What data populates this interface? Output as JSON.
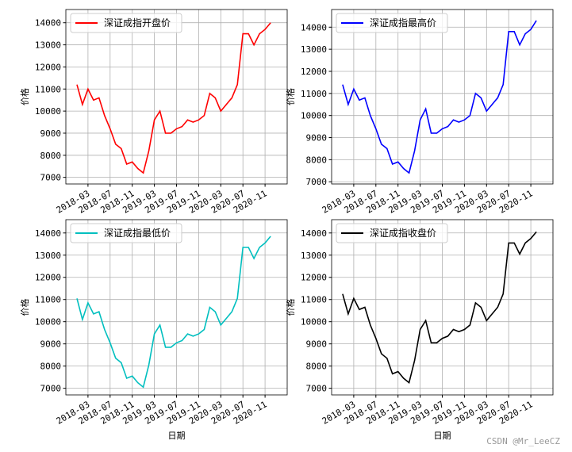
{
  "chart_data": [
    {
      "type": "line",
      "legend": "upper left",
      "grid": true,
      "ylabel": "价格",
      "x": [
        "2018-01",
        "2018-02",
        "2018-03",
        "2018-04",
        "2018-05",
        "2018-06",
        "2018-07",
        "2018-08",
        "2018-09",
        "2018-10",
        "2018-11",
        "2018-12",
        "2019-01",
        "2019-02",
        "2019-03",
        "2019-04",
        "2019-05",
        "2019-06",
        "2019-07",
        "2019-08",
        "2019-09",
        "2019-10",
        "2019-11",
        "2019-12",
        "2020-01",
        "2020-02",
        "2020-03",
        "2020-04",
        "2020-05",
        "2020-06",
        "2020-07",
        "2020-08",
        "2020-09",
        "2020-10",
        "2020-11",
        "2020-12"
      ],
      "xlim": [
        "2017-11",
        "2021-03"
      ],
      "xticks": [
        "2018-03",
        "2018-07",
        "2018-11",
        "2019-03",
        "2019-07",
        "2019-11",
        "2020-03",
        "2020-07",
        "2020-11"
      ],
      "ylim": [
        6700,
        14600
      ],
      "yticks": [
        7000,
        8000,
        9000,
        10000,
        11000,
        12000,
        13000,
        14000
      ],
      "series": [
        {
          "name": "深证成指开盘价",
          "color": "#ff0000",
          "values": [
            11200,
            10300,
            11000,
            10500,
            10600,
            9800,
            9200,
            8500,
            8300,
            7600,
            7700,
            7400,
            7200,
            8200,
            9600,
            10000,
            9000,
            9000,
            9200,
            9300,
            9600,
            9500,
            9600,
            9800,
            10800,
            10600,
            10000,
            10300,
            10600,
            11200,
            13500,
            13500,
            13000,
            13500,
            13700,
            14000
          ]
        }
      ]
    },
    {
      "type": "line",
      "legend": "upper left",
      "grid": true,
      "ylabel": "价格",
      "x": [
        "2018-01",
        "2018-02",
        "2018-03",
        "2018-04",
        "2018-05",
        "2018-06",
        "2018-07",
        "2018-08",
        "2018-09",
        "2018-10",
        "2018-11",
        "2018-12",
        "2019-01",
        "2019-02",
        "2019-03",
        "2019-04",
        "2019-05",
        "2019-06",
        "2019-07",
        "2019-08",
        "2019-09",
        "2019-10",
        "2019-11",
        "2019-12",
        "2020-01",
        "2020-02",
        "2020-03",
        "2020-04",
        "2020-05",
        "2020-06",
        "2020-07",
        "2020-08",
        "2020-09",
        "2020-10",
        "2020-11",
        "2020-12"
      ],
      "xlim": [
        "2017-11",
        "2021-03"
      ],
      "xticks": [
        "2018-03",
        "2018-07",
        "2018-11",
        "2019-03",
        "2019-07",
        "2019-11",
        "2020-03",
        "2020-07",
        "2020-11"
      ],
      "ylim": [
        6900,
        14800
      ],
      "yticks": [
        7000,
        8000,
        9000,
        10000,
        11000,
        12000,
        13000,
        14000
      ],
      "series": [
        {
          "name": "深证成指最高价",
          "color": "#0000ff",
          "values": [
            11400,
            10500,
            11200,
            10700,
            10800,
            10000,
            9400,
            8700,
            8500,
            7800,
            7900,
            7600,
            7400,
            8400,
            9800,
            10300,
            9200,
            9200,
            9400,
            9500,
            9800,
            9700,
            9800,
            10000,
            11000,
            10800,
            10200,
            10500,
            10800,
            11400,
            13800,
            13800,
            13200,
            13700,
            13900,
            14300
          ]
        }
      ]
    },
    {
      "type": "line",
      "legend": "upper left",
      "grid": true,
      "ylabel": "价格",
      "xlabel": "日期",
      "x": [
        "2018-01",
        "2018-02",
        "2018-03",
        "2018-04",
        "2018-05",
        "2018-06",
        "2018-07",
        "2018-08",
        "2018-09",
        "2018-10",
        "2018-11",
        "2018-12",
        "2019-01",
        "2019-02",
        "2019-03",
        "2019-04",
        "2019-05",
        "2019-06",
        "2019-07",
        "2019-08",
        "2019-09",
        "2019-10",
        "2019-11",
        "2019-12",
        "2020-01",
        "2020-02",
        "2020-03",
        "2020-04",
        "2020-05",
        "2020-06",
        "2020-07",
        "2020-08",
        "2020-09",
        "2020-10",
        "2020-11",
        "2020-12"
      ],
      "xlim": [
        "2017-11",
        "2021-03"
      ],
      "xticks": [
        "2018-03",
        "2018-07",
        "2018-11",
        "2019-03",
        "2019-07",
        "2019-11",
        "2020-03",
        "2020-07",
        "2020-11"
      ],
      "ylim": [
        6700,
        14600
      ],
      "yticks": [
        7000,
        8000,
        9000,
        10000,
        11000,
        12000,
        13000,
        14000
      ],
      "series": [
        {
          "name": "深证成指最低价",
          "color": "#00bfbf",
          "values": [
            11050,
            10100,
            10850,
            10350,
            10450,
            9650,
            9050,
            8350,
            8150,
            7450,
            7550,
            7250,
            7050,
            8050,
            9450,
            9850,
            8850,
            8850,
            9050,
            9150,
            9450,
            9350,
            9450,
            9650,
            10650,
            10450,
            9850,
            10150,
            10450,
            11050,
            13350,
            13350,
            12850,
            13350,
            13550,
            13850
          ]
        }
      ]
    },
    {
      "type": "line",
      "legend": "upper left",
      "grid": true,
      "ylabel": "价格",
      "xlabel": "日期",
      "x": [
        "2018-01",
        "2018-02",
        "2018-03",
        "2018-04",
        "2018-05",
        "2018-06",
        "2018-07",
        "2018-08",
        "2018-09",
        "2018-10",
        "2018-11",
        "2018-12",
        "2019-01",
        "2019-02",
        "2019-03",
        "2019-04",
        "2019-05",
        "2019-06",
        "2019-07",
        "2019-08",
        "2019-09",
        "2019-10",
        "2019-11",
        "2019-12",
        "2020-01",
        "2020-02",
        "2020-03",
        "2020-04",
        "2020-05",
        "2020-06",
        "2020-07",
        "2020-08",
        "2020-09",
        "2020-10",
        "2020-11",
        "2020-12"
      ],
      "xlim": [
        "2017-11",
        "2021-03"
      ],
      "xticks": [
        "2018-03",
        "2018-07",
        "2018-11",
        "2019-03",
        "2019-07",
        "2019-11",
        "2020-03",
        "2020-07",
        "2020-11"
      ],
      "ylim": [
        6700,
        14600
      ],
      "yticks": [
        7000,
        8000,
        9000,
        10000,
        11000,
        12000,
        13000,
        14000
      ],
      "series": [
        {
          "name": "深证成指收盘价",
          "color": "#000000",
          "values": [
            11250,
            10350,
            11050,
            10550,
            10650,
            9850,
            9250,
            8550,
            8350,
            7650,
            7750,
            7450,
            7250,
            8250,
            9650,
            10050,
            9050,
            9050,
            9250,
            9350,
            9650,
            9550,
            9650,
            9850,
            10850,
            10650,
            10050,
            10350,
            10650,
            11250,
            13550,
            13550,
            13050,
            13550,
            13750,
            14050
          ]
        }
      ]
    }
  ],
  "watermark": "CSDN @Mr_LeeCZ"
}
